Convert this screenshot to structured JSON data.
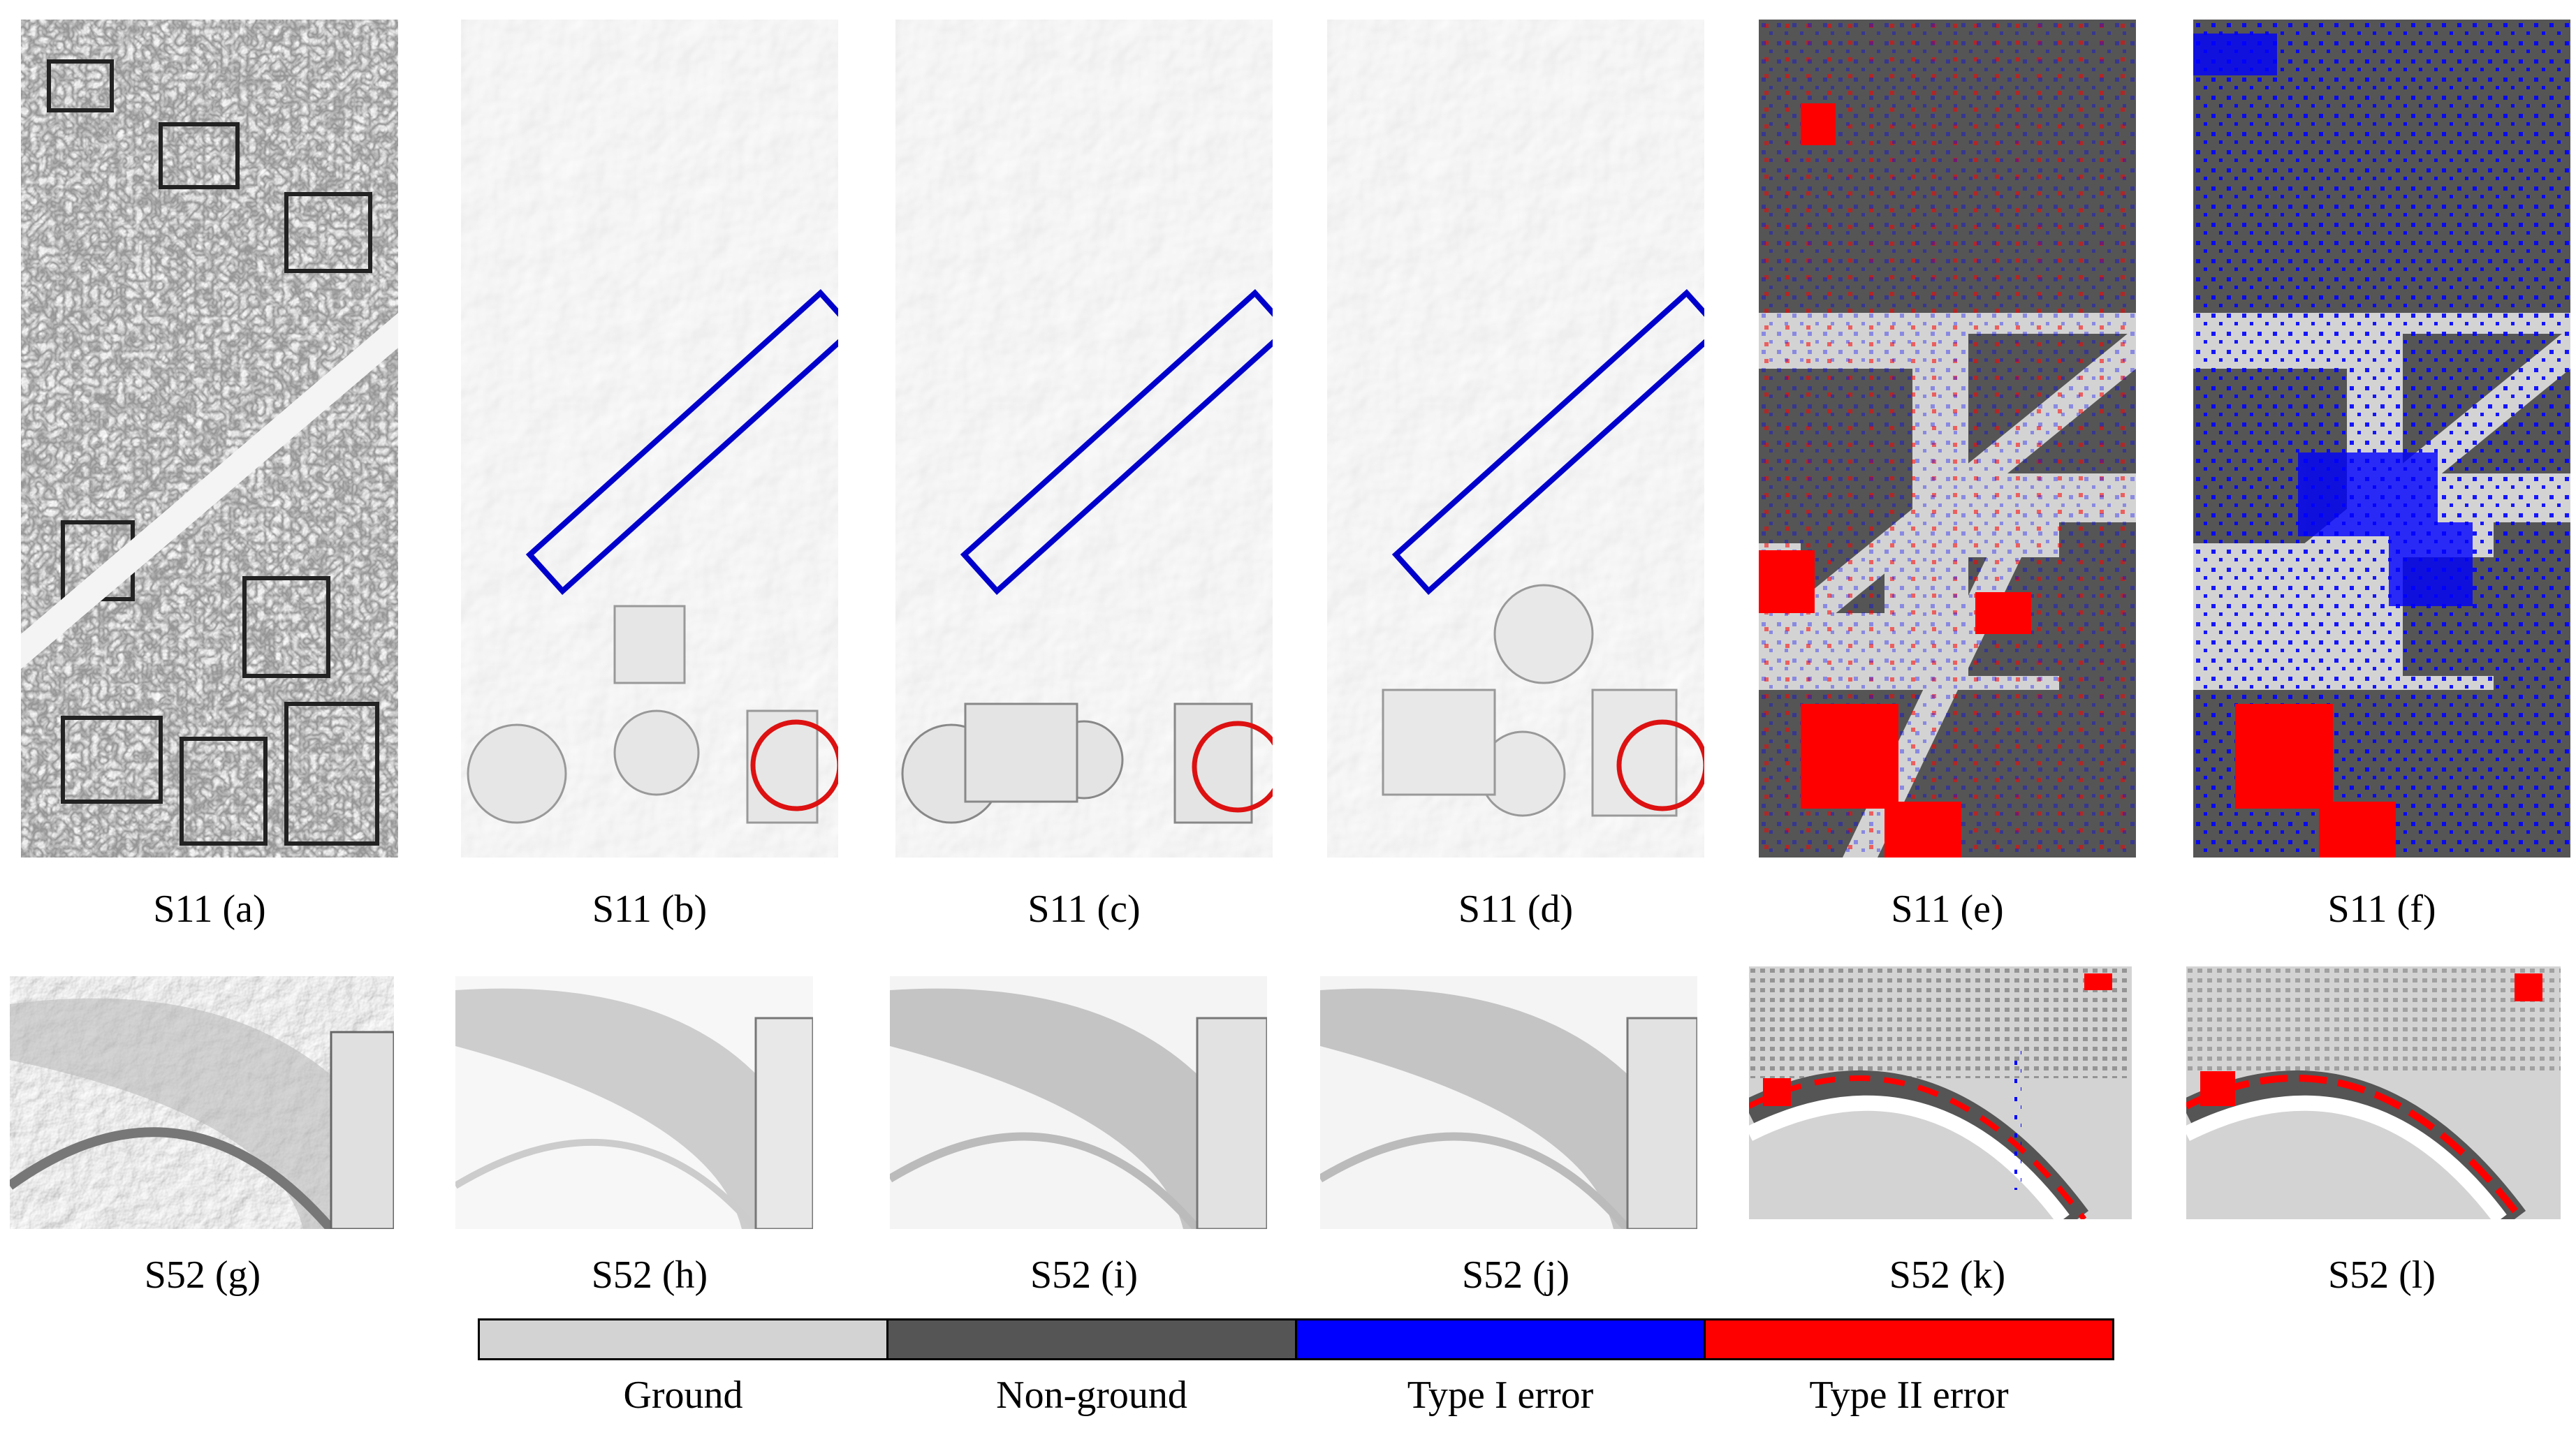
{
  "captions_row1": [
    "S11 (a)",
    "S11 (b)",
    "S11 (c)",
    "S11 (d)",
    "S11 (e)",
    "S11 (f)"
  ],
  "captions_row2": [
    "S52 (g)",
    "S52 (h)",
    "S52 (i)",
    "S52 (j)",
    "S52 (k)",
    "S52 (l)"
  ],
  "legend": [
    {
      "label": "Ground",
      "color": "#d3d3d3"
    },
    {
      "label": "Non-ground",
      "color": "#555555"
    },
    {
      "label": "Type I error",
      "color": "#0000ff"
    },
    {
      "label": "Type II error",
      "color": "#ff0000"
    }
  ],
  "markers": {
    "rectangle_color": "#0000cc",
    "circle_color": "#dd1111"
  }
}
